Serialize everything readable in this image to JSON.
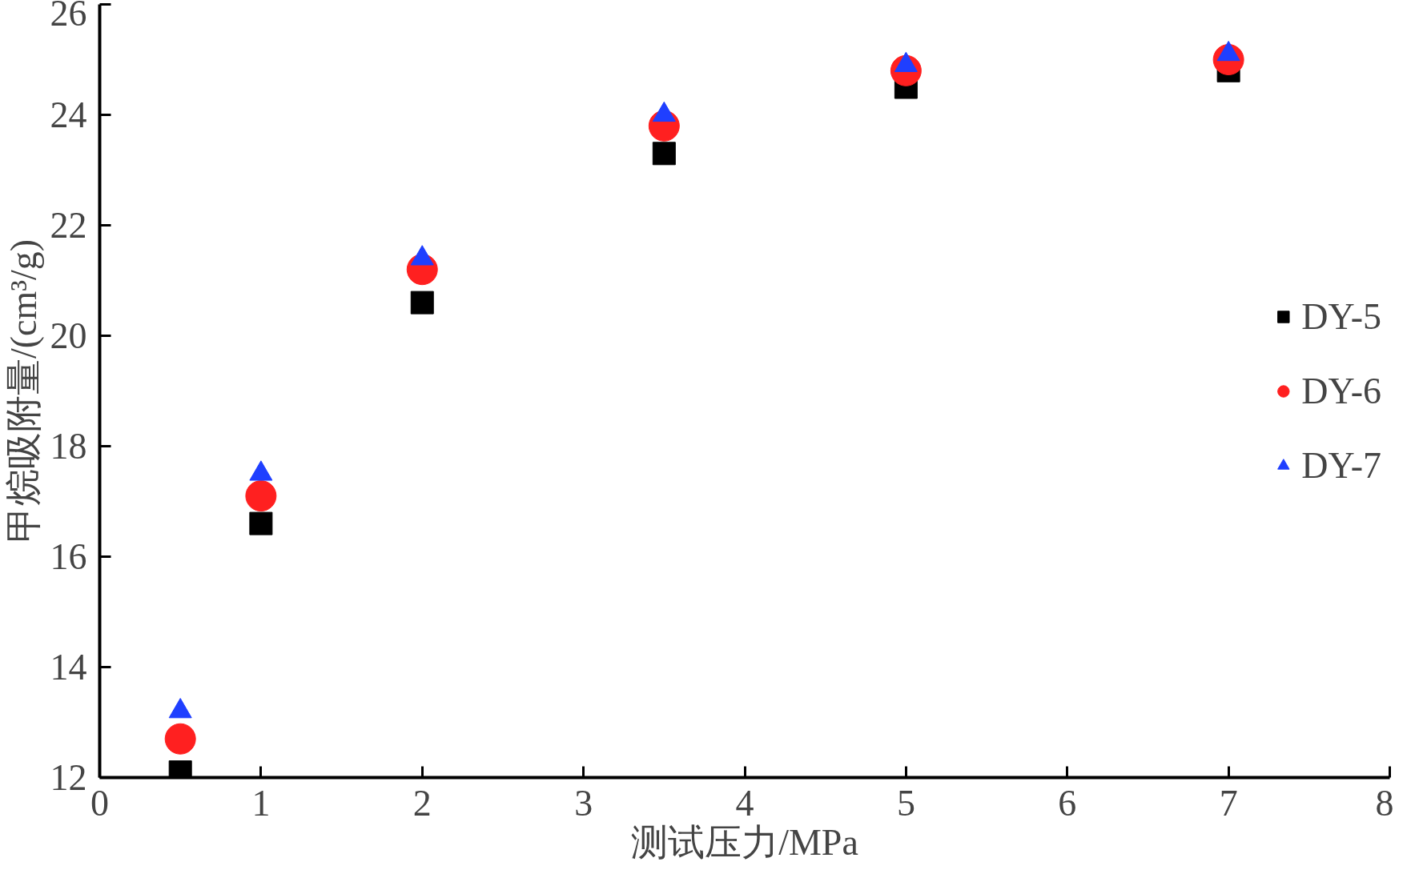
{
  "chart_data": {
    "type": "scatter",
    "xlabel": "测试压力/MPa",
    "ylabel": "甲烷吸附量/(cm³/g)",
    "xlim": [
      0,
      8
    ],
    "xticks": [
      0,
      1,
      2,
      3,
      4,
      5,
      6,
      7,
      8
    ],
    "ylim": [
      12,
      26
    ],
    "yticks": [
      12,
      14,
      16,
      18,
      20,
      22,
      24,
      26
    ],
    "grid": false,
    "legend": "right",
    "series": [
      {
        "name": "DY-5",
        "color": "#000000",
        "marker": "square",
        "x": [
          0.5,
          1,
          2,
          3.5,
          5,
          7
        ],
        "values": [
          12.1,
          16.6,
          20.6,
          23.3,
          24.5,
          24.8
        ]
      },
      {
        "name": "DY-6",
        "color": "#ff2020",
        "marker": "circle",
        "x": [
          0.5,
          1,
          2,
          3.5,
          5,
          7
        ],
        "values": [
          12.7,
          17.1,
          21.2,
          23.8,
          24.8,
          25.0
        ]
      },
      {
        "name": "DY-7",
        "color": "#1f3fff",
        "marker": "triangle",
        "x": [
          0.5,
          1,
          2,
          3.5,
          5,
          7
        ],
        "values": [
          13.2,
          17.5,
          21.4,
          24.0,
          24.9,
          25.1
        ]
      }
    ]
  }
}
